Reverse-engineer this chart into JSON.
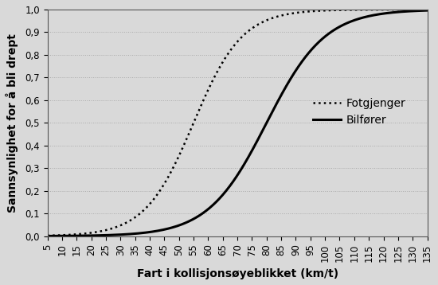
{
  "title": "",
  "xlabel": "Fart i kollisjonsøyeblikket (km/t)",
  "ylabel": "Sannsynlighet for å bli drept",
  "x_min": 5,
  "x_max": 135,
  "x_ticks": [
    5,
    10,
    15,
    20,
    25,
    30,
    35,
    40,
    45,
    50,
    55,
    60,
    65,
    70,
    75,
    80,
    85,
    90,
    95,
    100,
    105,
    110,
    115,
    120,
    125,
    130,
    135
  ],
  "y_min": 0.0,
  "y_max": 1.0,
  "y_ticks": [
    0.0,
    0.1,
    0.2,
    0.3,
    0.4,
    0.5,
    0.6,
    0.7,
    0.8,
    0.9,
    1.0
  ],
  "fotgjenger_midpoint": 55,
  "fotgjenger_k": 0.12,
  "bilforer_midpoint": 80,
  "bilforer_k": 0.1,
  "background_color": "#d9d9d9",
  "plot_bg_color": "#d9d9d9",
  "line_color": "#000000",
  "legend_fotgjenger": "Fotgjenger",
  "legend_bilforer": "Bilfører",
  "fontsize_axis_label": 10,
  "fontsize_tick": 8.5,
  "fontsize_legend": 10
}
